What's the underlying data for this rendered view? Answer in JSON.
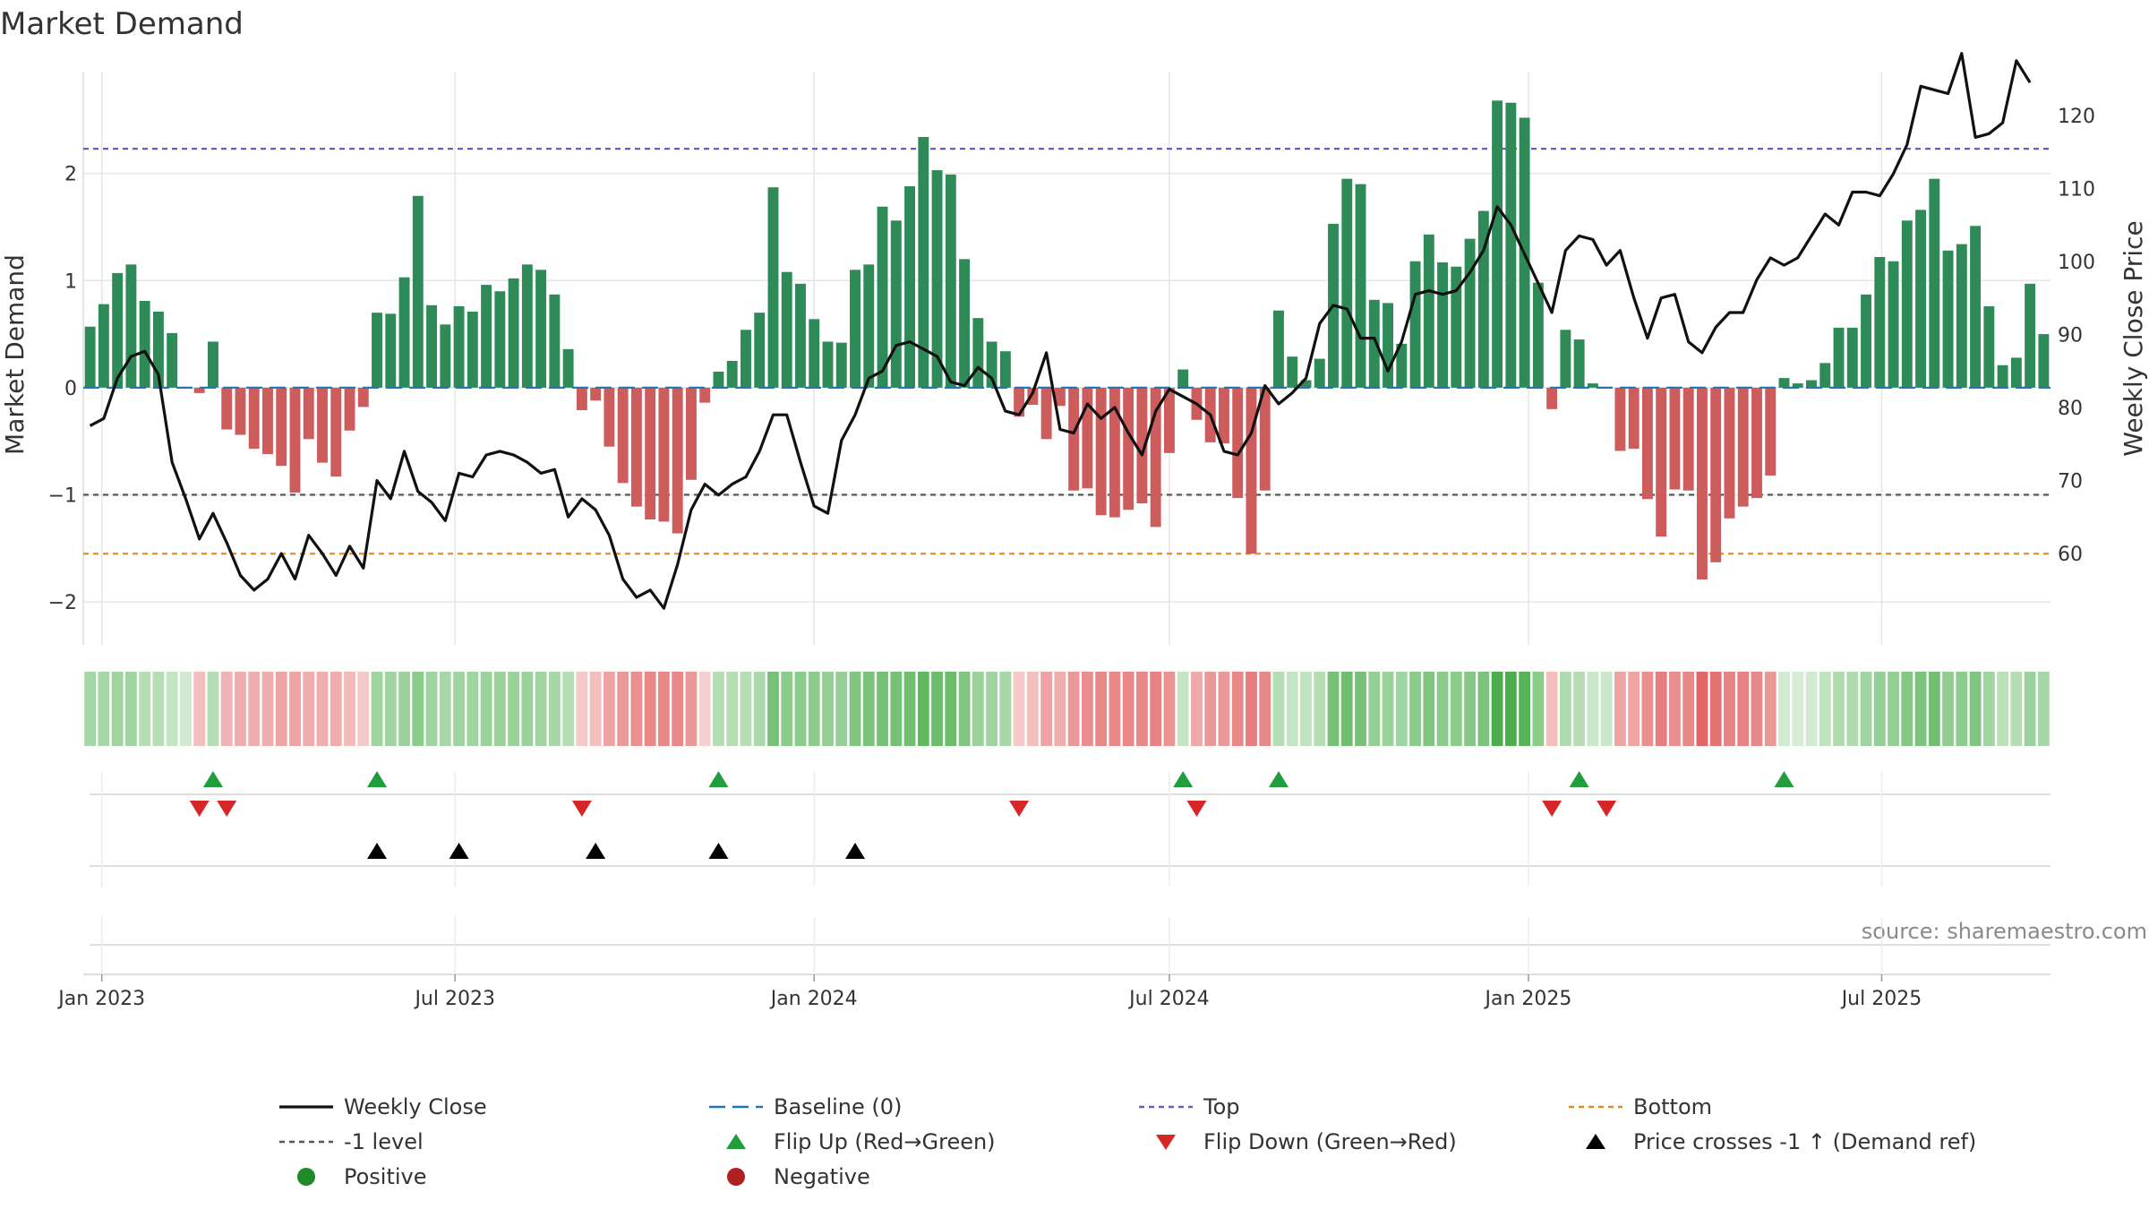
{
  "chart_data": {
    "type": "bar+line",
    "title": "Market Demand",
    "ylabel_left": "Market Demand",
    "ylabel_right": "Weekly Close Price",
    "ylim_left": [
      -2.4,
      2.95
    ],
    "ylim_right": [
      47.5,
      126
    ],
    "yticks_left": [
      {
        "v": 2,
        "label": "2"
      },
      {
        "v": 1,
        "label": "1"
      },
      {
        "v": 0,
        "label": "0"
      },
      {
        "v": -1,
        "label": "−1"
      },
      {
        "v": -2,
        "label": "−2"
      }
    ],
    "yticks_right": [
      {
        "v": 120,
        "label": "120"
      },
      {
        "v": 110,
        "label": "110"
      },
      {
        "v": 100,
        "label": "100"
      },
      {
        "v": 90,
        "label": "90"
      },
      {
        "v": 80,
        "label": "80"
      },
      {
        "v": 70,
        "label": "70"
      },
      {
        "v": 60,
        "label": "60"
      }
    ],
    "x_start": "2022-12-26",
    "week_days": 7,
    "xticks": [
      {
        "date": "2023-01-01",
        "label": "Jan 2023"
      },
      {
        "date": "2023-07-01",
        "label": "Jul 2023"
      },
      {
        "date": "2024-01-01",
        "label": "Jan 2024"
      },
      {
        "date": "2024-07-01",
        "label": "Jul 2024"
      },
      {
        "date": "2025-01-01",
        "label": "Jan 2025"
      },
      {
        "date": "2025-07-01",
        "label": "Jul 2025"
      }
    ],
    "reference_lines": {
      "top": 2.23,
      "minus_one": -1,
      "bottom": -1.55,
      "baseline": 0
    },
    "demand": [
      0.57,
      0.78,
      1.07,
      1.15,
      0.81,
      0.71,
      0.51,
      0.0,
      -0.05,
      0.43,
      -0.39,
      -0.44,
      -0.57,
      -0.62,
      -0.73,
      -0.98,
      -0.48,
      -0.7,
      -0.83,
      -0.4,
      -0.18,
      0.7,
      0.69,
      1.03,
      1.79,
      0.77,
      0.59,
      0.76,
      0.71,
      0.96,
      0.9,
      1.02,
      1.15,
      1.1,
      0.87,
      0.36,
      -0.21,
      -0.12,
      -0.55,
      -0.89,
      -1.11,
      -1.23,
      -1.25,
      -1.36,
      -0.86,
      -0.14,
      0.15,
      0.25,
      0.54,
      0.7,
      1.87,
      1.08,
      0.97,
      0.64,
      0.43,
      0.42,
      1.1,
      1.15,
      1.69,
      1.56,
      1.88,
      2.34,
      2.03,
      1.99,
      1.2,
      0.65,
      0.43,
      0.34,
      -0.27,
      -0.16,
      -0.48,
      -0.17,
      -0.96,
      -0.94,
      -1.19,
      -1.21,
      -1.14,
      -1.08,
      -1.3,
      -0.61,
      0.17,
      -0.3,
      -0.51,
      -0.52,
      -1.03,
      -1.55,
      -0.96,
      0.72,
      0.29,
      0.07,
      0.27,
      1.53,
      1.95,
      1.9,
      0.82,
      0.79,
      0.41,
      1.18,
      1.43,
      1.17,
      1.13,
      1.39,
      1.65,
      2.68,
      2.66,
      2.52,
      0.98,
      -0.2,
      0.54,
      0.45,
      0.04,
      0.0,
      -0.59,
      -0.57,
      -1.04,
      -1.39,
      -0.95,
      -0.96,
      -1.79,
      -1.63,
      -1.22,
      -1.11,
      -1.03,
      -0.82,
      0.09,
      0.04,
      0.07,
      0.23,
      0.56,
      0.56,
      0.87,
      1.22,
      1.18,
      1.56,
      1.66,
      1.95,
      1.28,
      1.34,
      1.51,
      0.76,
      0.21,
      0.28,
      0.97,
      0.5
    ],
    "close": [
      77.5,
      78.5,
      84,
      87,
      87.7,
      84.5,
      72.5,
      67.5,
      62,
      65.5,
      61.5,
      57,
      55,
      56.5,
      60,
      56.5,
      62.5,
      60,
      57,
      61,
      58,
      70,
      67.5,
      74,
      68.5,
      67,
      64.5,
      71,
      70.5,
      73.5,
      74,
      73.5,
      72.5,
      71,
      71.5,
      65,
      67.5,
      66,
      62.5,
      56.5,
      54,
      55,
      52.5,
      58.5,
      66,
      69.5,
      68,
      69.5,
      70.5,
      74,
      79,
      79,
      72.5,
      66.5,
      65.5,
      75.5,
      79,
      84,
      85,
      88.5,
      89,
      88,
      87,
      83.5,
      83,
      85.5,
      84,
      79.5,
      79,
      82,
      87.5,
      77,
      76.5,
      80.5,
      78.5,
      80,
      76.5,
      73.5,
      79.5,
      82.5,
      81.5,
      80.5,
      79,
      74,
      73.5,
      76.5,
      83,
      80.5,
      82,
      84,
      91.5,
      94,
      93.5,
      89.5,
      89.5,
      85,
      89,
      95.5,
      96,
      95.5,
      96,
      98.5,
      101.5,
      107.5,
      105,
      101,
      97,
      93,
      101.5,
      103.5,
      103,
      99.5,
      101.5,
      95,
      89.5,
      95,
      95.5,
      89,
      87.5,
      91,
      93,
      93,
      97.5,
      100.5,
      99.5,
      100.5,
      103.5,
      106.5,
      105,
      109.5,
      109.5,
      109,
      112,
      116,
      124,
      123.5,
      123,
      128.5,
      117,
      117.5,
      119,
      127.5,
      124.5
    ],
    "strip_levels": [
      0.42,
      0.42,
      0.45,
      0.45,
      0.35,
      0.35,
      0.28,
      0.22,
      0.3,
      0.35,
      0.35,
      0.38,
      0.38,
      0.38,
      0.42,
      0.42,
      0.38,
      0.38,
      0.38,
      0.32,
      0.25,
      0.45,
      0.45,
      0.48,
      0.55,
      0.45,
      0.42,
      0.45,
      0.45,
      0.48,
      0.48,
      0.48,
      0.48,
      0.45,
      0.42,
      0.35,
      0.25,
      0.3,
      0.42,
      0.48,
      0.52,
      0.55,
      0.55,
      0.55,
      0.48,
      0.22,
      0.35,
      0.35,
      0.35,
      0.4,
      0.65,
      0.55,
      0.55,
      0.55,
      0.5,
      0.5,
      0.6,
      0.62,
      0.65,
      0.65,
      0.68,
      0.75,
      0.7,
      0.7,
      0.6,
      0.48,
      0.45,
      0.42,
      0.25,
      0.3,
      0.42,
      0.38,
      0.48,
      0.52,
      0.55,
      0.55,
      0.55,
      0.55,
      0.58,
      0.5,
      0.28,
      0.4,
      0.48,
      0.48,
      0.55,
      0.6,
      0.55,
      0.35,
      0.28,
      0.3,
      0.35,
      0.65,
      0.68,
      0.65,
      0.5,
      0.48,
      0.45,
      0.55,
      0.6,
      0.55,
      0.55,
      0.58,
      0.62,
      0.85,
      0.85,
      0.8,
      0.55,
      0.3,
      0.38,
      0.35,
      0.25,
      0.25,
      0.42,
      0.42,
      0.52,
      0.6,
      0.52,
      0.55,
      0.7,
      0.65,
      0.58,
      0.58,
      0.55,
      0.48,
      0.22,
      0.2,
      0.22,
      0.3,
      0.38,
      0.38,
      0.45,
      0.5,
      0.5,
      0.58,
      0.62,
      0.68,
      0.52,
      0.55,
      0.6,
      0.45,
      0.32,
      0.35,
      0.48,
      0.42
    ],
    "flip_up_weeks": [
      9,
      21,
      46,
      80,
      87,
      109,
      124
    ],
    "flip_down_weeks": [
      8,
      10,
      36,
      68,
      81,
      107,
      111
    ],
    "price_cross_weeks": [
      21,
      27,
      37,
      46,
      56
    ],
    "source": "source: sharemaestro.com",
    "colors": {
      "positive_bar": "#2e8b57",
      "negative_bar": "#cd5c5c",
      "close_line": "#111111",
      "baseline": "#1f77b4",
      "top": "#6a5acd",
      "minus_one": "#555555",
      "bottom": "#e08a1e",
      "flip_up": "#1f9e3b",
      "flip_down": "#d62728",
      "cross": "#000000",
      "positive_dot": "#1f8a2a",
      "negative_dot": "#b02020",
      "grid": "#e6e6e6",
      "strip_green": "#2ca02c",
      "strip_red": "#d62728"
    },
    "legend": [
      {
        "key": "close",
        "label": "Weekly Close"
      },
      {
        "key": "baseline",
        "label": "Baseline (0)"
      },
      {
        "key": "top",
        "label": "Top"
      },
      {
        "key": "bottom",
        "label": "Bottom"
      },
      {
        "key": "minus_one",
        "label": "-1 level"
      },
      {
        "key": "flip_up",
        "label": "Flip Up (Red→Green)"
      },
      {
        "key": "flip_down",
        "label": "Flip Down (Green→Red)"
      },
      {
        "key": "cross",
        "label": "Price crosses -1 ↑ (Demand ref)"
      },
      {
        "key": "positive",
        "label": "Positive"
      },
      {
        "key": "negative",
        "label": "Negative"
      }
    ]
  }
}
